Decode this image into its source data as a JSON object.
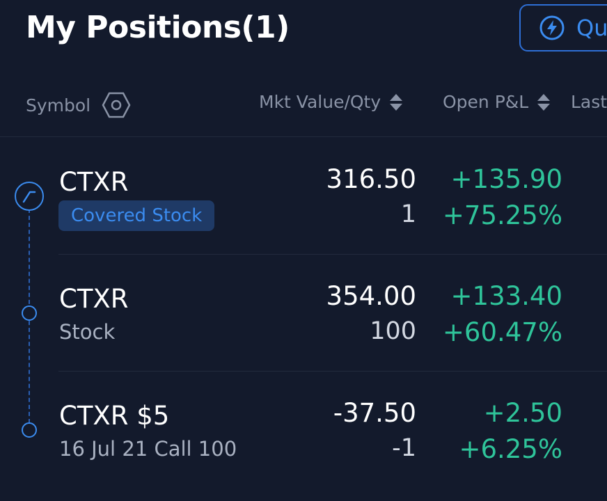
{
  "header": {
    "title": "My Positions(1)",
    "quick_button_label": "Qu"
  },
  "columns": {
    "symbol": "Symbol",
    "mkt_value_qty": "Mkt Value/Qty",
    "open_pl": "Open P&L",
    "last": "Last"
  },
  "positions": [
    {
      "symbol": "CTXR",
      "subtitle": "Covered Stock",
      "subtitle_style": "badge",
      "mkt_value": "316.50",
      "qty": "1",
      "open_pl": "+135.90",
      "open_pl_pct": "+75.25%"
    },
    {
      "symbol": "CTXR",
      "subtitle": "Stock",
      "mkt_value": "354.00",
      "qty": "100",
      "open_pl": "+133.40",
      "open_pl_pct": "+60.47%"
    },
    {
      "symbol": "CTXR $5",
      "subtitle": "16 Jul 21 Call 100",
      "mkt_value": "-37.50",
      "qty": "-1",
      "open_pl": "+2.50",
      "open_pl_pct": "+6.25%"
    }
  ],
  "colors": {
    "background": "#131a2c",
    "accent_blue": "#3b8cf0",
    "gain_green": "#2fc49a",
    "muted_text": "#8a93a6"
  },
  "icons": {
    "quick_button": "lightning-bolt-icon",
    "symbol_settings": "hexagon-settings-icon",
    "sort": "sort-updown-icon",
    "strategy": "strategy-line-icon"
  }
}
